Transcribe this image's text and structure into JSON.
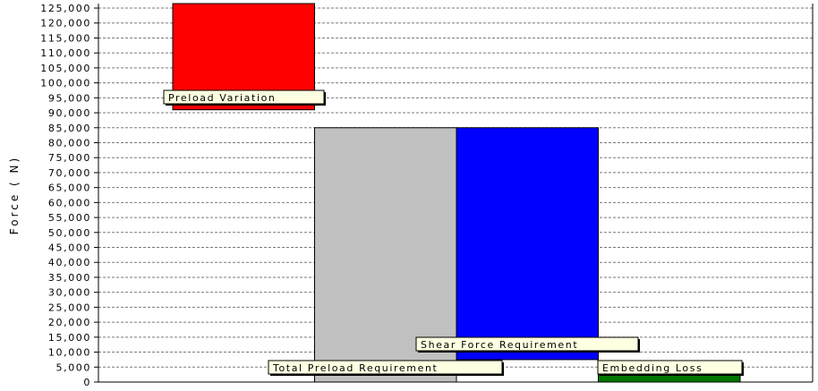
{
  "chart_data": {
    "type": "bar",
    "title": "",
    "xlabel": "",
    "ylabel": "Force ( N)",
    "ylim": [
      0,
      126500
    ],
    "ytick_step": 5000,
    "yticks": [
      "0",
      "5,000",
      "10,000",
      "15,000",
      "20,000",
      "25,000",
      "30,000",
      "35,000",
      "40,000",
      "45,000",
      "50,000",
      "55,000",
      "60,000",
      "65,000",
      "70,000",
      "75,000",
      "80,000",
      "85,000",
      "90,000",
      "95,000",
      "100,000",
      "105,000",
      "110,000",
      "115,000",
      "120,000",
      "125,000"
    ],
    "grid": true,
    "bars": [
      {
        "label": "Preload Variation",
        "bottom": 91000,
        "top": 126500,
        "color": "#ff0000"
      },
      {
        "label": "Total Preload Requirement",
        "bottom": 0,
        "top": 85000,
        "color": "#c0c0c0"
      },
      {
        "label": "Shear Force Requirement",
        "bottom": 7500,
        "top": 85000,
        "color": "#0000ff"
      },
      {
        "label": "Embedding Loss",
        "bottom": 0,
        "top": 2500,
        "color": "#007700"
      }
    ]
  }
}
